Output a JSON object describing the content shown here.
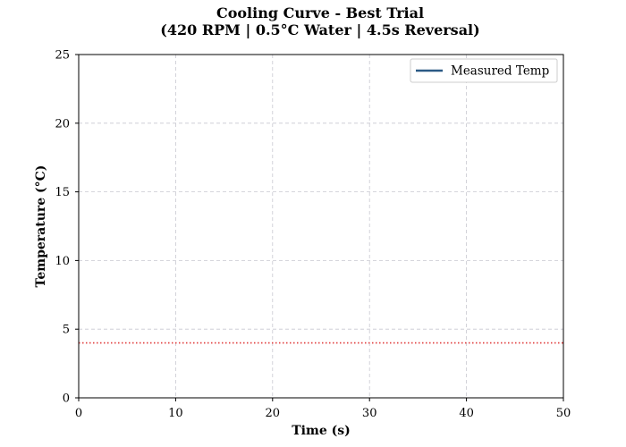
{
  "chart_data": {
    "type": "line",
    "title_line1": "Cooling Curve - Best Trial",
    "title_line2": "(420 RPM | 0.5°C Water | 4.5s Reversal)",
    "xlabel": "Time (s)",
    "ylabel": "Temperature (°C)",
    "xlim": [
      0,
      50
    ],
    "ylim": [
      0,
      25
    ],
    "xticks": [
      0,
      10,
      20,
      30,
      40,
      50
    ],
    "yticks": [
      0,
      5,
      10,
      15,
      20,
      25
    ],
    "grid": true,
    "legend_position": "top-right",
    "series": [
      {
        "name": "Measured Temp",
        "color": "#2b5a85",
        "style": "solid",
        "x": [],
        "y": []
      }
    ],
    "reference_lines": [
      {
        "orientation": "horizontal",
        "y": 4,
        "color": "#e03a3a",
        "style": "dotted"
      }
    ]
  }
}
